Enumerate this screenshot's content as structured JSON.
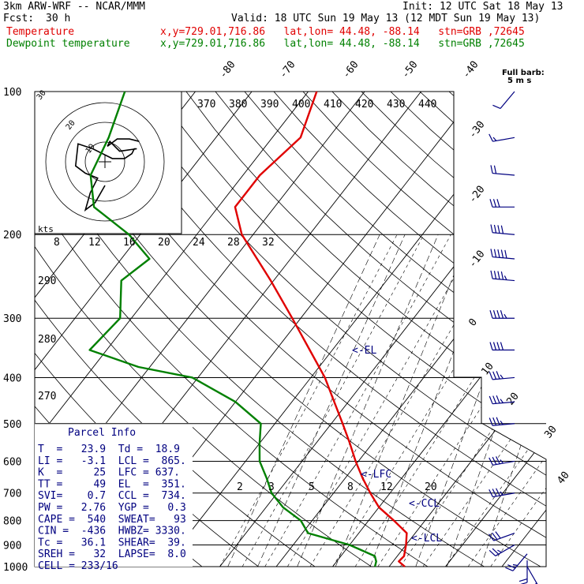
{
  "header": {
    "model": "3km ARW-WRF -- NCAR/MMM",
    "init": "Init: 12 UTC Sat 18 May 13",
    "fcst_label": "Fcst:",
    "fcst_value": "30 h",
    "valid": "Valid: 18 UTC Sun 19 May 13 (12 MDT Sun 19 May 13)",
    "temp_label": "Temperature",
    "temp_loc": "x,y=729.01,716.86   lat,lon= 44.48, -88.14   stn=GRB ,72645",
    "dew_label": "Dewpoint temperature",
    "dew_loc": "x,y=729.01,716.86   lat,lon= 44.48, -88.14   stn=GRB ,72645"
  },
  "colors": {
    "temperature": "#e00000",
    "dewpoint": "#008000",
    "parcel": "#000080",
    "barbs": "#000080"
  },
  "barb_legend": {
    "title": "Full barb:",
    "value": "5 m s"
  },
  "parcel_info": {
    "title": "Parcel Info",
    "rows": [
      "T  =   23.9  Td =  18.9",
      "LI =   -3.1  LCL =  865.",
      "K  =     25  LFC = 637.",
      "TT =     49  EL  =  351.",
      "SVI=    0.7  CCL =  734.",
      "PW =   2.76  YGP =   0.3",
      "CAPE =  540  SWEAT=   93",
      "CIN =  -436  HWBZ= 3330.",
      "Tc =   36.1  SHEAR=  39.",
      "SREH =   32  LAPSE=  8.0",
      "CELL = 233/16"
    ]
  },
  "hodograph": {
    "kts_label": "kts",
    "ring_labels": [
      "10",
      "20",
      "30"
    ],
    "trace": [
      [
        0,
        0
      ],
      [
        -8,
        -14
      ],
      [
        -16,
        -20
      ],
      [
        -12,
        -6
      ],
      [
        -6,
        6
      ],
      [
        -16,
        10
      ],
      [
        -24,
        16
      ],
      [
        -22,
        34
      ],
      [
        -10,
        30
      ],
      [
        6,
        22
      ],
      [
        16,
        22
      ],
      [
        22,
        26
      ],
      [
        24,
        30
      ],
      [
        26,
        30
      ],
      [
        12,
        28
      ],
      [
        6,
        34
      ],
      [
        4,
        36
      ],
      [
        2,
        32
      ],
      [
        10,
        38
      ],
      [
        20,
        38
      ],
      [
        28,
        36
      ]
    ]
  },
  "annotations": {
    "el": "<-EL",
    "lfc": "<-LFC",
    "ccl": "<-CCL",
    "lcl": "<-LCL"
  },
  "chart_data": {
    "type": "line",
    "title": "",
    "xlabel": "",
    "ylabel": "",
    "pressure_levels": [
      100,
      200,
      300,
      400,
      500,
      600,
      700,
      800,
      900,
      1000
    ],
    "isotherm_labels": [
      -80,
      -70,
      -60,
      -50,
      -40,
      -30,
      -20,
      -10,
      0,
      10,
      20,
      30,
      40
    ],
    "theta_labels": [
      370,
      380,
      390,
      400,
      410,
      420,
      430,
      440
    ],
    "theta_side_labels": [
      290,
      280,
      270
    ],
    "mixing_ratio_top": [
      8,
      12,
      16,
      20,
      24,
      28,
      32
    ],
    "mixing_ratio_low": [
      2,
      3,
      5,
      8,
      12,
      20
    ],
    "series": [
      {
        "name": "Temperature",
        "points": [
          [
            1000,
            22.8
          ],
          [
            975,
            21.0
          ],
          [
            950,
            21.2
          ],
          [
            900,
            20.0
          ],
          [
            850,
            18.5
          ],
          [
            800,
            14.5
          ],
          [
            750,
            10.0
          ],
          [
            700,
            6.5
          ],
          [
            650,
            3.0
          ],
          [
            600,
            -0.5
          ],
          [
            550,
            -4.0
          ],
          [
            500,
            -8.0
          ],
          [
            450,
            -12.5
          ],
          [
            400,
            -17.5
          ],
          [
            350,
            -24.0
          ],
          [
            300,
            -31.5
          ],
          [
            250,
            -40.5
          ],
          [
            200,
            -52.0
          ],
          [
            175,
            -57.0
          ],
          [
            150,
            -57.0
          ],
          [
            125,
            -55.0
          ],
          [
            100,
            -58.5
          ]
        ]
      },
      {
        "name": "Dewpoint temperature",
        "points": [
          [
            1000,
            17.5
          ],
          [
            975,
            17.0
          ],
          [
            950,
            16.0
          ],
          [
            900,
            10.0
          ],
          [
            850,
            1.0
          ],
          [
            800,
            -2.0
          ],
          [
            750,
            -7.0
          ],
          [
            700,
            -11.0
          ],
          [
            650,
            -14.0
          ],
          [
            600,
            -17.5
          ],
          [
            550,
            -20.0
          ],
          [
            500,
            -22.5
          ],
          [
            450,
            -30.0
          ],
          [
            400,
            -41.0
          ],
          [
            380,
            -52.0
          ],
          [
            350,
            -63.0
          ],
          [
            300,
            -62.0
          ],
          [
            250,
            -67.0
          ],
          [
            225,
            -65.0
          ],
          [
            200,
            -72.0
          ],
          [
            175,
            -82.0
          ],
          [
            150,
            -87.0
          ],
          [
            125,
            -89.0
          ],
          [
            100,
            -92.5
          ]
        ]
      }
    ],
    "wind_barbs": [
      {
        "p": 1000,
        "dir": 150,
        "spd": 15
      },
      {
        "p": 970,
        "dir": 180,
        "spd": 20
      },
      {
        "p": 940,
        "dir": 220,
        "spd": 25
      },
      {
        "p": 900,
        "dir": 240,
        "spd": 25
      },
      {
        "p": 850,
        "dir": 250,
        "spd": 30
      },
      {
        "p": 700,
        "dir": 260,
        "spd": 35
      },
      {
        "p": 600,
        "dir": 260,
        "spd": 35
      },
      {
        "p": 500,
        "dir": 265,
        "spd": 35
      },
      {
        "p": 450,
        "dir": 265,
        "spd": 35
      },
      {
        "p": 400,
        "dir": 265,
        "spd": 35
      },
      {
        "p": 350,
        "dir": 270,
        "spd": 40
      },
      {
        "p": 300,
        "dir": 270,
        "spd": 45
      },
      {
        "p": 250,
        "dir": 275,
        "spd": 45
      },
      {
        "p": 225,
        "dir": 275,
        "spd": 50
      },
      {
        "p": 200,
        "dir": 275,
        "spd": 40
      },
      {
        "p": 175,
        "dir": 270,
        "spd": 30
      },
      {
        "p": 150,
        "dir": 275,
        "spd": 20
      },
      {
        "p": 125,
        "dir": 260,
        "spd": 15
      },
      {
        "p": 100,
        "dir": 220,
        "spd": 10
      }
    ]
  }
}
